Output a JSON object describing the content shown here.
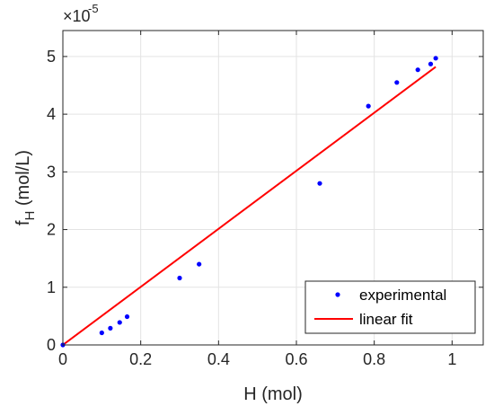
{
  "chart_data": {
    "type": "scatter",
    "xlabel": "H (mol)",
    "ylabel_main": "f",
    "ylabel_sub": "H",
    "ylabel_unit": " (mol/L)",
    "y_exponent_base": "×10",
    "y_exponent_power": "-5",
    "xlim": [
      0,
      1.08
    ],
    "ylim": [
      0,
      5.45
    ],
    "grid": true,
    "x_ticks": [
      0,
      0.2,
      0.4,
      0.6,
      0.8,
      1
    ],
    "x_tick_labels": [
      "0",
      "0.2",
      "0.4",
      "0.6",
      "0.8",
      "1"
    ],
    "y_ticks": [
      0,
      1,
      2,
      3,
      4,
      5
    ],
    "y_tick_labels": [
      "0",
      "1",
      "2",
      "3",
      "4",
      "5"
    ],
    "legend_position": "bottom-right",
    "series": [
      {
        "name": "experimental",
        "kind": "points",
        "color": "#0000ff",
        "x": [
          0.0,
          0.1,
          0.122,
          0.146,
          0.165,
          0.3,
          0.35,
          0.66,
          0.785,
          0.858,
          0.912,
          0.945,
          0.958
        ],
        "y": [
          0.0,
          0.21,
          0.29,
          0.39,
          0.49,
          1.16,
          1.4,
          2.8,
          4.14,
          4.55,
          4.77,
          4.87,
          4.97
        ]
      },
      {
        "name": "linear fit",
        "kind": "line",
        "color": "#ff0000",
        "x": [
          0.0,
          0.958
        ],
        "y": [
          0.0,
          4.82
        ]
      }
    ]
  }
}
